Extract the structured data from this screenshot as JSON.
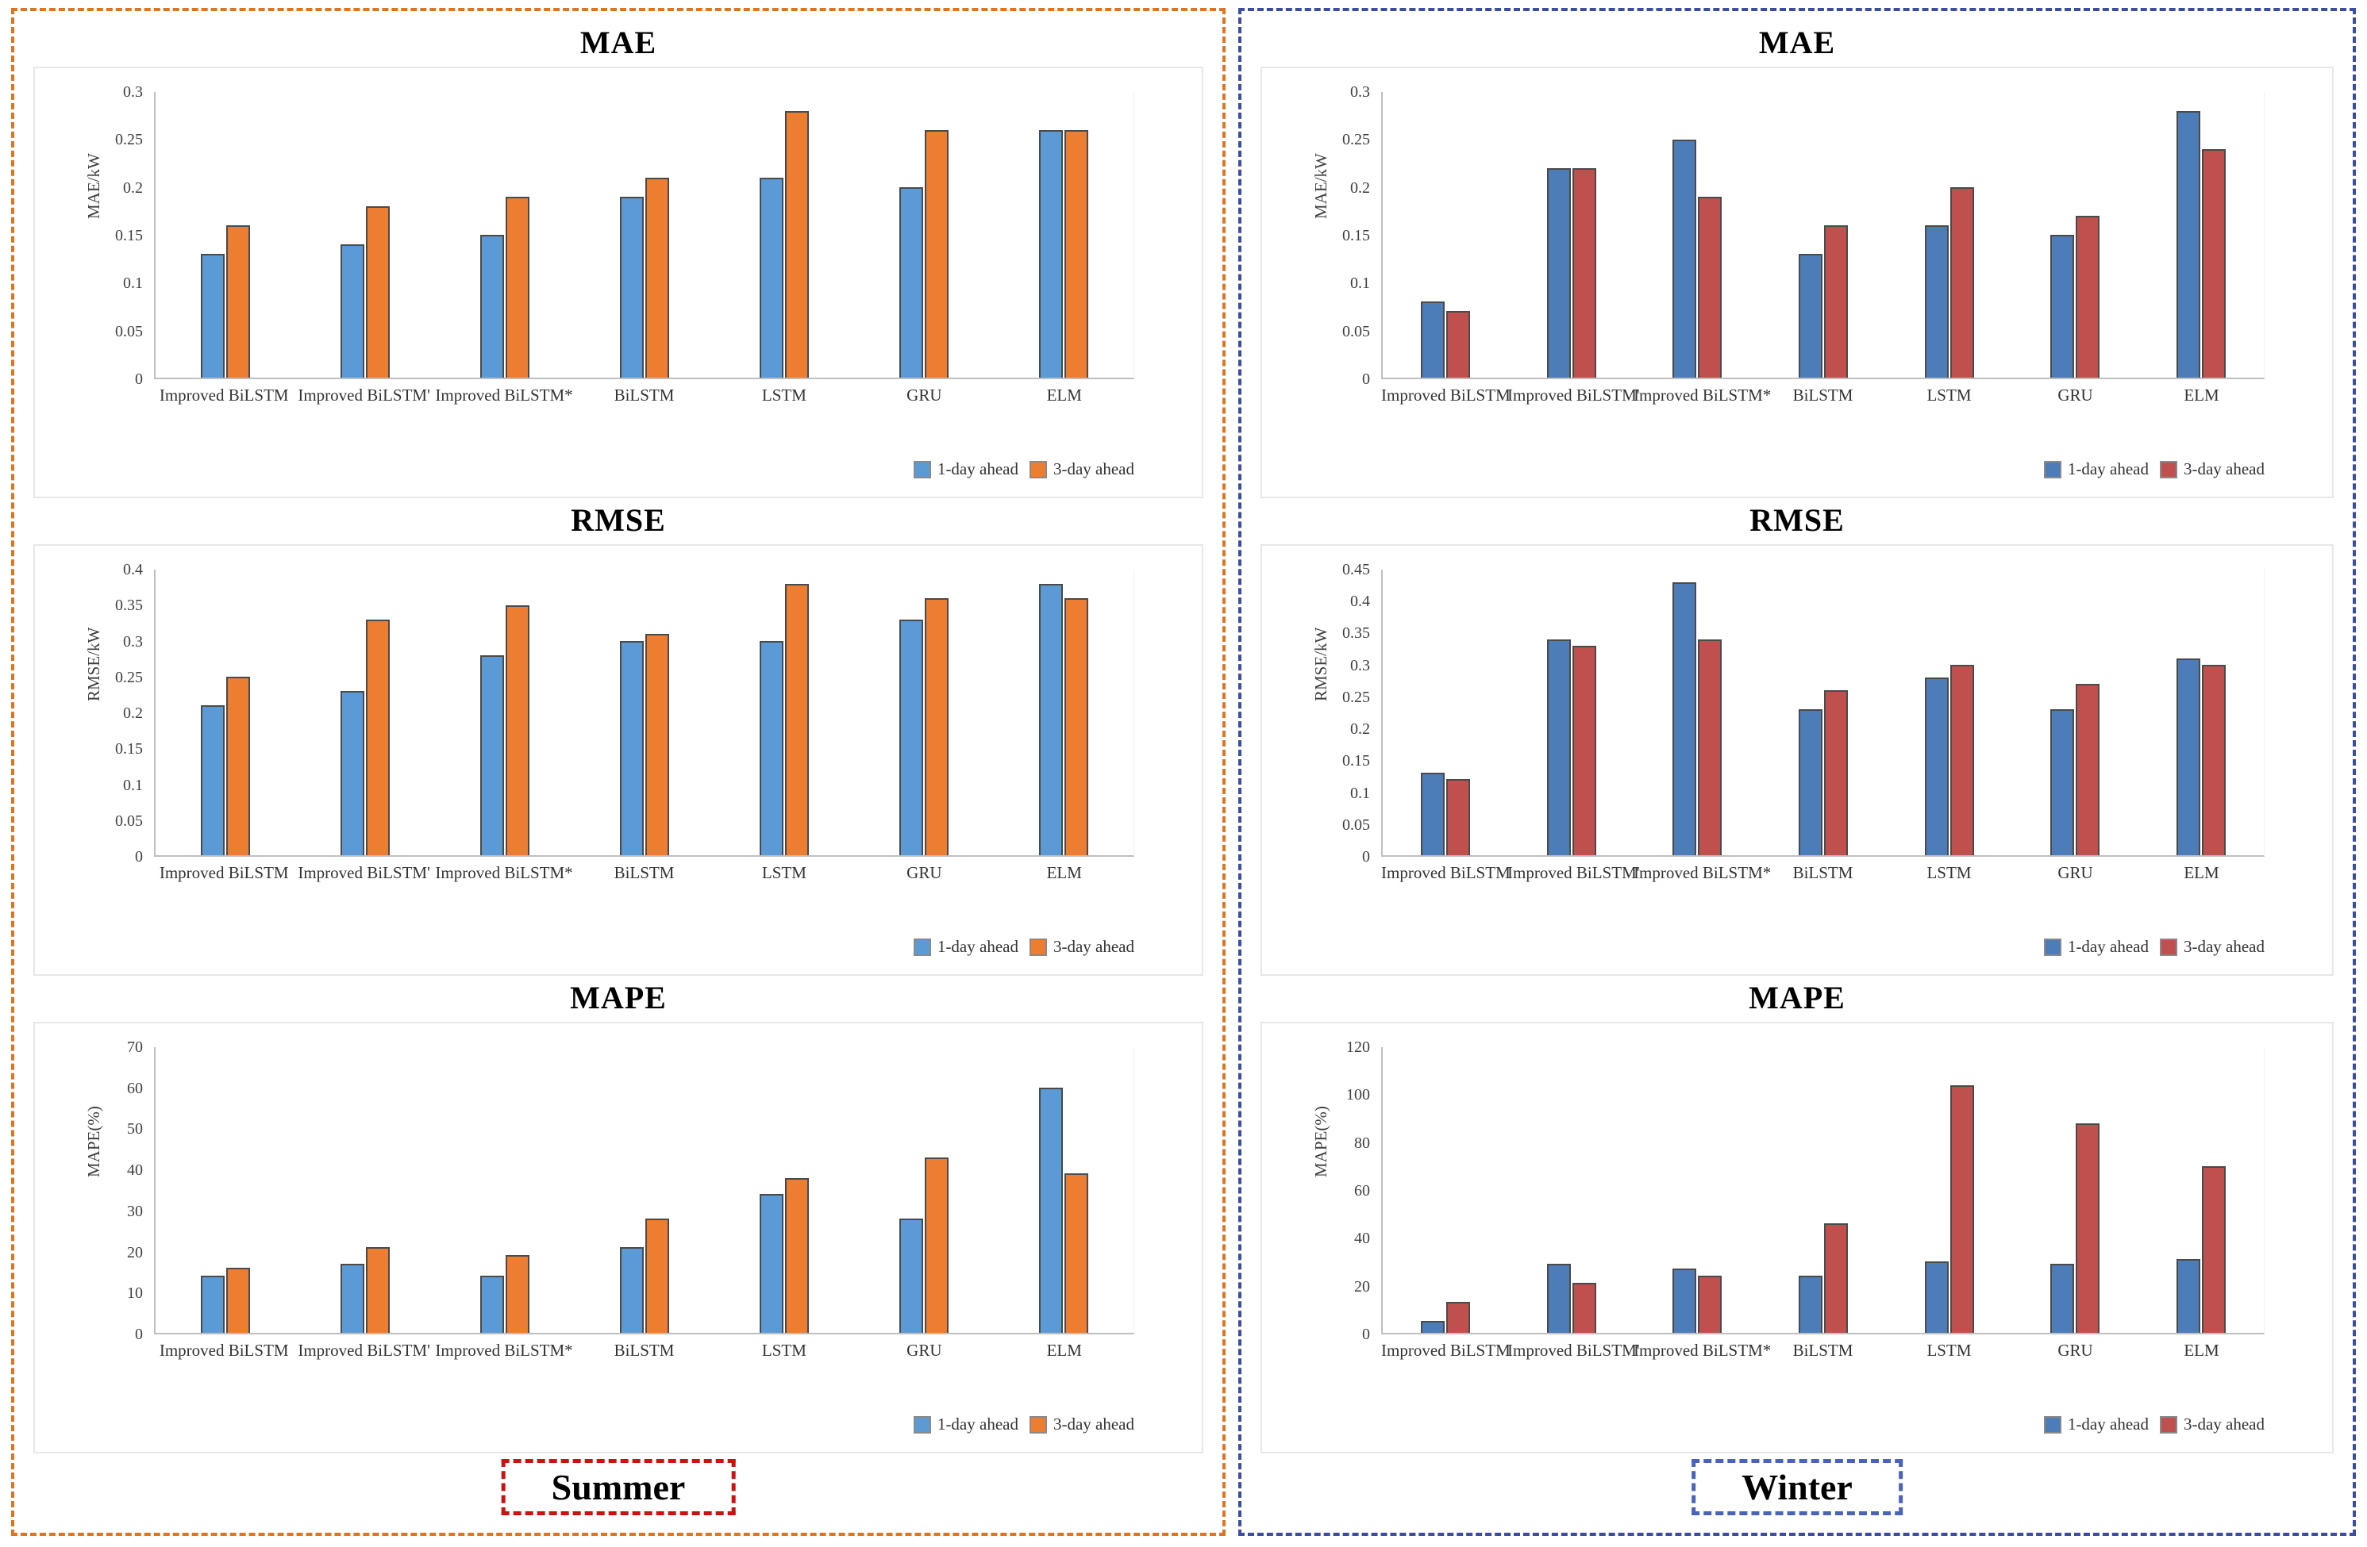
{
  "figure": {
    "seasons": [
      {
        "id": "summer",
        "label": "Summer",
        "box_border_color": "#DD7520",
        "label_border_color": "#CC1111"
      },
      {
        "id": "winter",
        "label": "Winter",
        "box_border_color": "#3B4D9E",
        "label_border_color": "#4A63B8"
      }
    ],
    "legend_labels": [
      "1-day ahead",
      "3-day ahead"
    ],
    "colors": {
      "summer_1day_blue": "#5B9AD5",
      "summer_3day_orange": "#ED7D31",
      "winter_1day_blue": "#4D7DB9",
      "winter_3day_red": "#C0504D",
      "axis_line": "#BFBFBF",
      "bar_border": "#4A4A4A"
    }
  },
  "chart_data": [
    {
      "type": "bar",
      "season": "summer",
      "title": "MAE",
      "ylabel": "MAE/kW",
      "ylim": [
        0,
        0.3
      ],
      "ytick_step": 0.05,
      "grid": false,
      "legend_position": "bottom-right",
      "categories": [
        "Improved BiLSTM",
        "Improved BiLSTM'",
        "Improved BiLSTM*",
        "BiLSTM",
        "LSTM",
        "GRU",
        "ELM"
      ],
      "series": [
        {
          "name": "1-day ahead",
          "color": "#5B9AD5",
          "values": [
            0.13,
            0.14,
            0.15,
            0.19,
            0.21,
            0.2,
            0.26
          ]
        },
        {
          "name": "3-day ahead",
          "color": "#ED7D31",
          "values": [
            0.16,
            0.18,
            0.19,
            0.21,
            0.28,
            0.26,
            0.26
          ]
        }
      ]
    },
    {
      "type": "bar",
      "season": "summer",
      "title": "RMSE",
      "ylabel": "RMSE/kW",
      "ylim": [
        0,
        0.4
      ],
      "ytick_step": 0.05,
      "grid": false,
      "legend_position": "bottom-right",
      "categories": [
        "Improved BiLSTM",
        "Improved BiLSTM'",
        "Improved BiLSTM*",
        "BiLSTM",
        "LSTM",
        "GRU",
        "ELM"
      ],
      "series": [
        {
          "name": "1-day ahead",
          "color": "#5B9AD5",
          "values": [
            0.21,
            0.23,
            0.28,
            0.3,
            0.3,
            0.33,
            0.38
          ]
        },
        {
          "name": "3-day ahead",
          "color": "#ED7D31",
          "values": [
            0.25,
            0.33,
            0.35,
            0.31,
            0.38,
            0.36,
            0.36
          ]
        }
      ]
    },
    {
      "type": "bar",
      "season": "summer",
      "title": "MAPE",
      "ylabel": "MAPE(%)",
      "ylim": [
        0,
        70
      ],
      "ytick_step": 10,
      "grid": false,
      "legend_position": "bottom-right",
      "categories": [
        "Improved BiLSTM",
        "Improved BiLSTM'",
        "Improved BiLSTM*",
        "BiLSTM",
        "LSTM",
        "GRU",
        "ELM"
      ],
      "series": [
        {
          "name": "1-day ahead",
          "color": "#5B9AD5",
          "values": [
            14,
            17,
            14,
            21,
            34,
            28,
            60
          ]
        },
        {
          "name": "3-day ahead",
          "color": "#ED7D31",
          "values": [
            16,
            21,
            19,
            28,
            38,
            43,
            39
          ]
        }
      ]
    },
    {
      "type": "bar",
      "season": "winter",
      "title": "MAE",
      "ylabel": "MAE/kW",
      "ylim": [
        0,
        0.3
      ],
      "ytick_step": 0.05,
      "grid": false,
      "legend_position": "bottom-right",
      "categories": [
        "Improved BiLSTM",
        "Improved BiLSTM'",
        "Improved BiLSTM*",
        "BiLSTM",
        "LSTM",
        "GRU",
        "ELM"
      ],
      "series": [
        {
          "name": "1-day ahead",
          "color": "#4D7DB9",
          "values": [
            0.08,
            0.22,
            0.25,
            0.13,
            0.16,
            0.15,
            0.28
          ]
        },
        {
          "name": "3-day ahead",
          "color": "#C0504D",
          "values": [
            0.07,
            0.22,
            0.19,
            0.16,
            0.2,
            0.17,
            0.24
          ]
        }
      ]
    },
    {
      "type": "bar",
      "season": "winter",
      "title": "RMSE",
      "ylabel": "RMSE/kW",
      "ylim": [
        0,
        0.45
      ],
      "ytick_step": 0.05,
      "grid": false,
      "legend_position": "bottom-right",
      "categories": [
        "Improved BiLSTM",
        "Improved BiLSTM'",
        "Improved BiLSTM*",
        "BiLSTM",
        "LSTM",
        "GRU",
        "ELM"
      ],
      "series": [
        {
          "name": "1-day ahead",
          "color": "#4D7DB9",
          "values": [
            0.13,
            0.34,
            0.43,
            0.23,
            0.28,
            0.23,
            0.31
          ]
        },
        {
          "name": "3-day ahead",
          "color": "#C0504D",
          "values": [
            0.12,
            0.33,
            0.34,
            0.26,
            0.3,
            0.27,
            0.3
          ]
        }
      ]
    },
    {
      "type": "bar",
      "season": "winter",
      "title": "MAPE",
      "ylabel": "MAPE(%)",
      "ylim": [
        0,
        120
      ],
      "ytick_step": 20,
      "grid": false,
      "legend_position": "bottom-right",
      "categories": [
        "Improved BiLSTM",
        "Improved BiLSTM'",
        "Improved BiLSTM*",
        "BiLSTM",
        "LSTM",
        "GRU",
        "ELM"
      ],
      "series": [
        {
          "name": "1-day ahead",
          "color": "#4D7DB9",
          "values": [
            5,
            29,
            27,
            24,
            30,
            29,
            31
          ]
        },
        {
          "name": "3-day ahead",
          "color": "#C0504D",
          "values": [
            13,
            21,
            24,
            46,
            104,
            88,
            70
          ]
        }
      ]
    }
  ]
}
